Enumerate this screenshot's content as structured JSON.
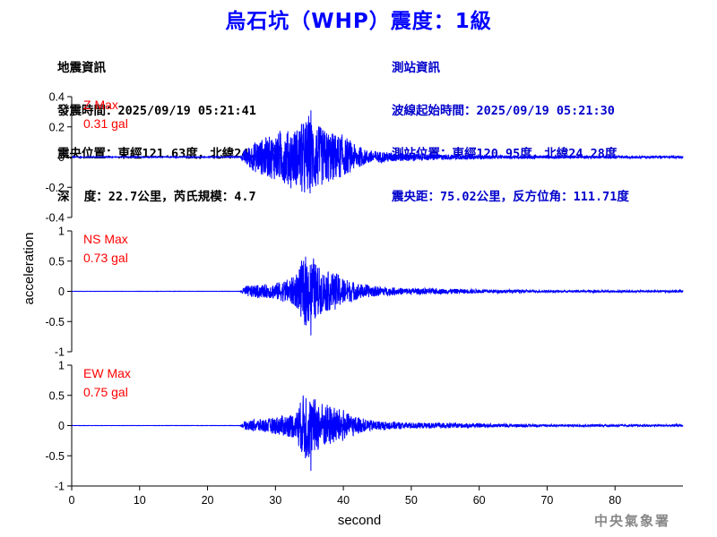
{
  "title": "烏石坑（WHP）震度：1級",
  "earthquake_info": {
    "heading": "地震資訊",
    "time_line": "發震時間：2025/09/19 05:21:41",
    "epicenter_line": "震央位置：東經121.63度，北緯24.03度",
    "depth_mag_line": "深  度：22.7公里，芮氏規模：4.7"
  },
  "station_info": {
    "heading": "測站資訊",
    "wave_start_line": "波線起始時間：2025/09/19 05:21:30",
    "station_pos_line": "測站位置：東經120.95度，北緯24.28度",
    "distance_line": "震央距：75.02公里，反方位角：111.71度"
  },
  "footer": "中央氣象署",
  "colors": {
    "trace": "#0000ff",
    "label": "#ff0000",
    "title": "#0000ff"
  },
  "chart_data": {
    "type": "line",
    "xlabel": "second",
    "ylabel": "acceleration",
    "xlim": [
      0,
      90
    ],
    "xticks": [
      0,
      10,
      20,
      30,
      40,
      50,
      60,
      70,
      80
    ],
    "grid": false,
    "panels": [
      {
        "name": "Z",
        "label_line1": "Z Max",
        "label_line2": "0.31 gal",
        "ylim": [
          -0.4,
          0.4
        ],
        "yticks": [
          -0.4,
          -0.2,
          0,
          0.2,
          0.4
        ],
        "ytick_labels": [
          "-0.4",
          "-0.2",
          "0",
          "0.2",
          "0.4"
        ],
        "peak": 0.31,
        "envelope": {
          "t": [
            0,
            24.8,
            25.5,
            27,
            29,
            31,
            33,
            34.5,
            35.5,
            37,
            39,
            41,
            43,
            46,
            50,
            55,
            60,
            65,
            70,
            80,
            90
          ],
          "amp": [
            0.003,
            0.004,
            0.06,
            0.12,
            0.16,
            0.2,
            0.22,
            0.3,
            0.28,
            0.22,
            0.18,
            0.12,
            0.06,
            0.04,
            0.03,
            0.02,
            0.015,
            0.012,
            0.01,
            0.008,
            0.008
          ]
        }
      },
      {
        "name": "NS",
        "label_line1": "NS Max",
        "label_line2": "0.73 gal",
        "ylim": [
          -1,
          1
        ],
        "yticks": [
          -1,
          -0.5,
          0,
          0.5,
          1
        ],
        "ytick_labels": [
          "-1",
          "-0.5",
          "0",
          "0.5",
          "1"
        ],
        "peak": 0.73,
        "envelope": {
          "t": [
            0,
            24.8,
            25.5,
            27,
            29,
            31,
            33,
            34.5,
            35.5,
            37,
            39,
            41,
            43,
            46,
            50,
            55,
            60,
            65,
            70,
            80,
            90
          ],
          "amp": [
            0.002,
            0.003,
            0.1,
            0.12,
            0.13,
            0.2,
            0.3,
            0.72,
            0.6,
            0.4,
            0.35,
            0.2,
            0.13,
            0.08,
            0.06,
            0.05,
            0.04,
            0.03,
            0.02,
            0.02,
            0.02
          ]
        }
      },
      {
        "name": "EW",
        "label_line1": "EW Max",
        "label_line2": "0.75 gal",
        "ylim": [
          -1,
          1
        ],
        "yticks": [
          -1,
          -0.5,
          0,
          0.5,
          1
        ],
        "ytick_labels": [
          "-1",
          "-0.5",
          "0",
          "0.5",
          "1"
        ],
        "peak": 0.75,
        "envelope": {
          "t": [
            0,
            24.8,
            25.5,
            27,
            29,
            31,
            33,
            34.5,
            35.5,
            37,
            39,
            41,
            43,
            46,
            50,
            55,
            60,
            65,
            70,
            80,
            90
          ],
          "amp": [
            0.002,
            0.003,
            0.08,
            0.12,
            0.14,
            0.2,
            0.25,
            0.74,
            0.55,
            0.45,
            0.35,
            0.22,
            0.12,
            0.08,
            0.06,
            0.05,
            0.04,
            0.03,
            0.02,
            0.02,
            0.02
          ]
        }
      }
    ]
  }
}
